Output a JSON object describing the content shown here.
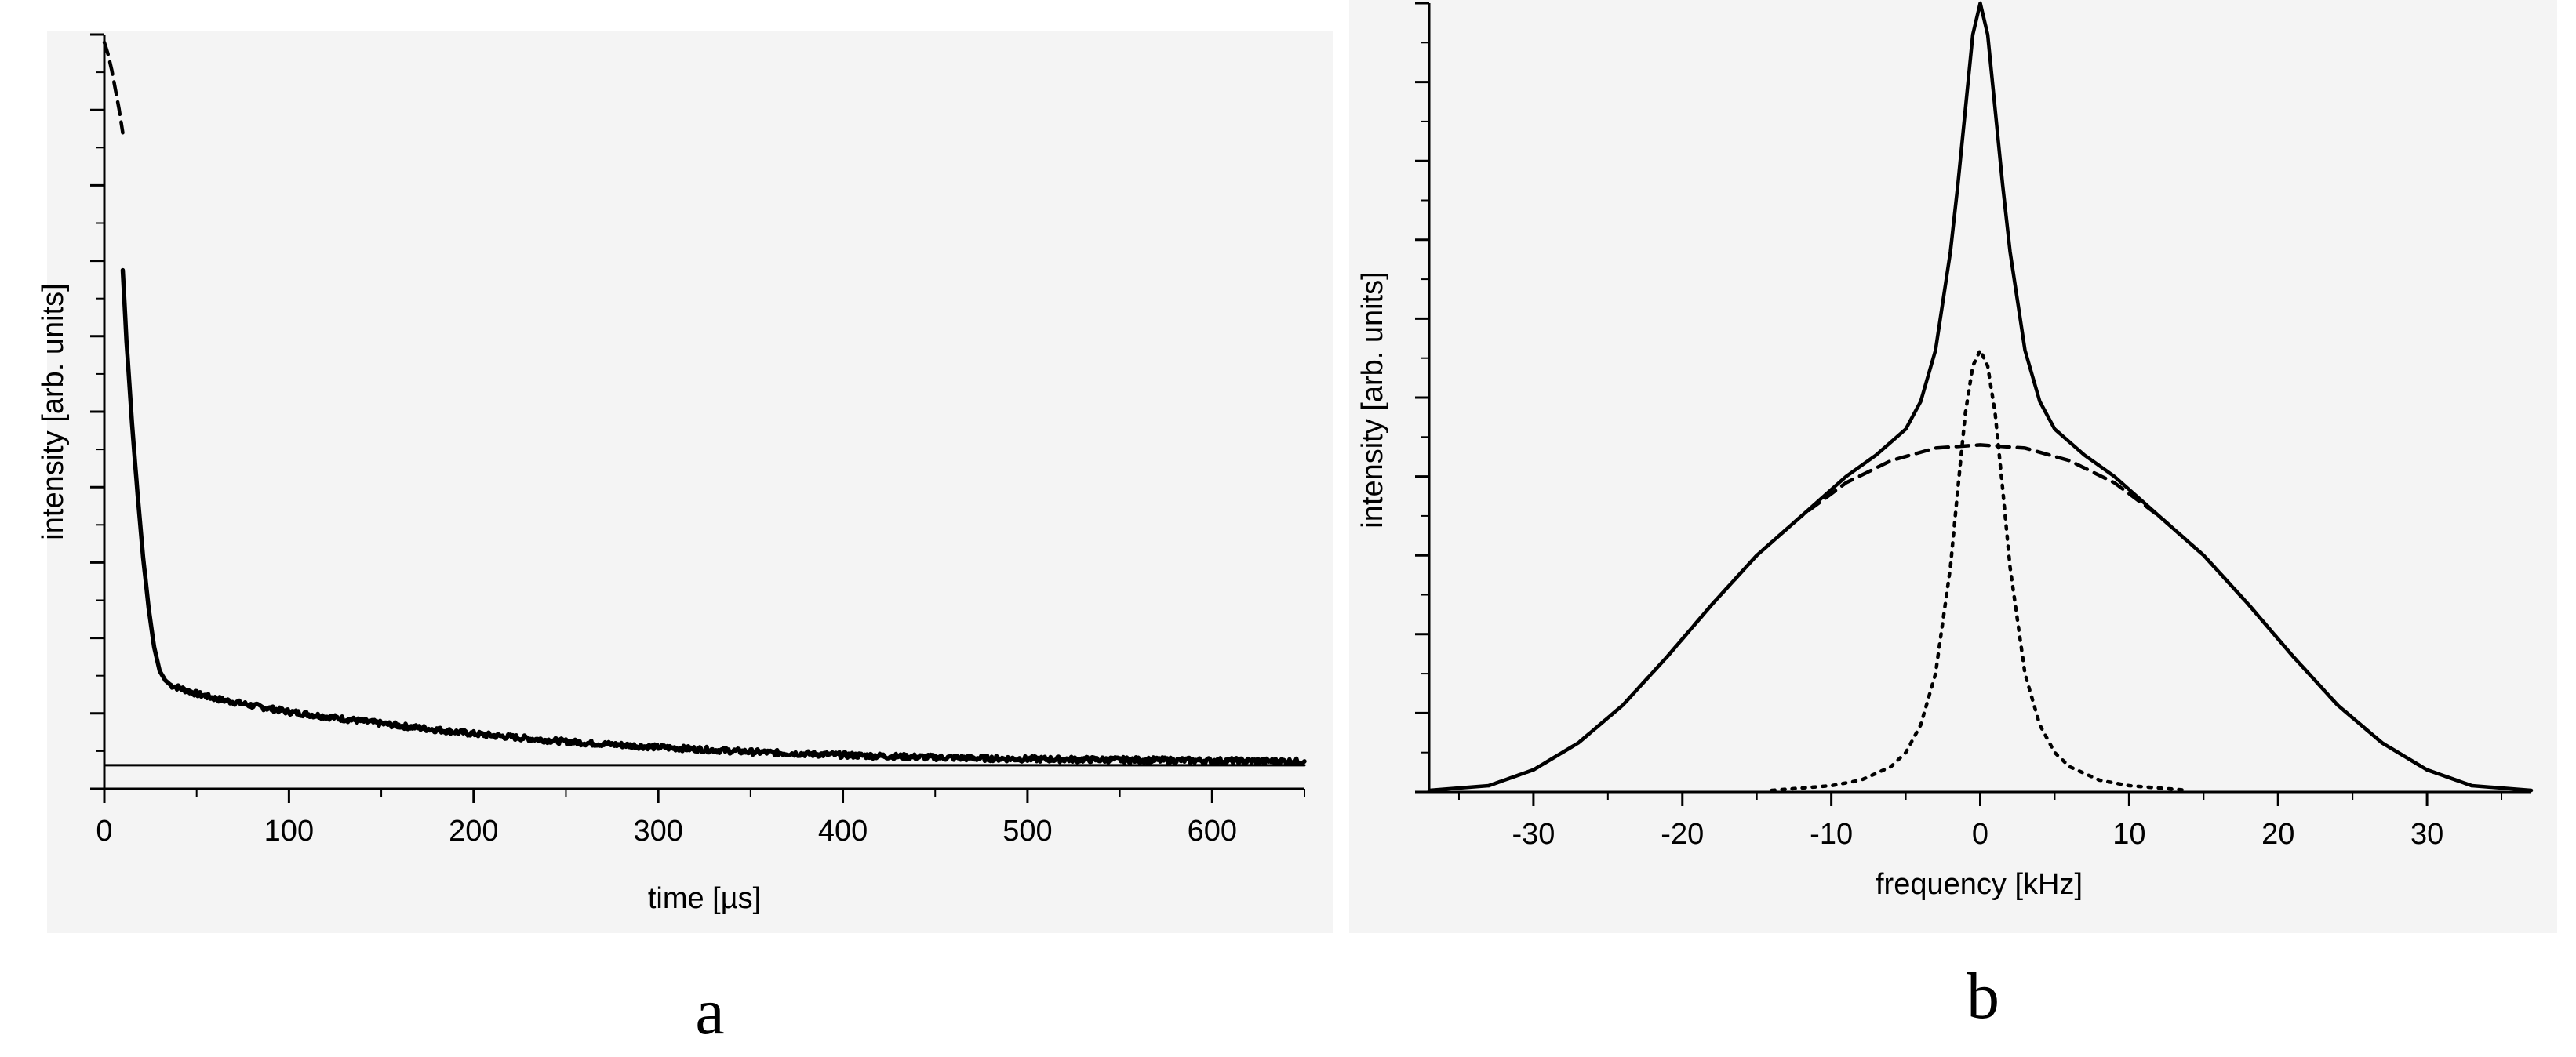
{
  "chart_data": [
    {
      "panel_label": "a",
      "type": "line",
      "xlabel": "time [µs]",
      "ylabel": "intensity [arb. units]",
      "xlim": [
        0,
        650
      ],
      "x_ticks": [
        0,
        100,
        200,
        300,
        400,
        500,
        600
      ],
      "y_tick_labels_shown": false,
      "ylim": [
        -0.3,
        9.3
      ],
      "grid": false,
      "series": [
        {
          "style": "dashed",
          "x": [
            0,
            2,
            4,
            6,
            8,
            10
          ],
          "y": [
            9.2,
            9.05,
            8.85,
            8.6,
            8.35,
            8.05
          ]
        },
        {
          "style": "solid-noisy",
          "x": [
            10,
            12,
            15,
            18,
            21,
            24,
            27,
            30,
            33,
            36,
            40,
            45,
            50,
            60,
            80,
            100,
            150,
            200,
            250,
            300,
            350,
            400,
            450,
            500,
            550,
            600,
            650
          ],
          "y": [
            6.3,
            5.4,
            4.35,
            3.45,
            2.65,
            2.0,
            1.5,
            1.2,
            1.08,
            1.02,
            0.99,
            0.95,
            0.91,
            0.85,
            0.76,
            0.68,
            0.53,
            0.4,
            0.3,
            0.23,
            0.17,
            0.13,
            0.1,
            0.08,
            0.07,
            0.06,
            0.05
          ]
        },
        {
          "style": "baseline",
          "x": [
            0,
            650
          ],
          "y": [
            0,
            0
          ]
        }
      ]
    },
    {
      "panel_label": "b",
      "type": "line",
      "xlabel": "frequency [kHz]",
      "ylabel": "intensity [arb. units]",
      "xlim": [
        -37,
        37
      ],
      "x_ticks": [
        -30,
        -20,
        -10,
        0,
        10,
        20,
        30
      ],
      "y_tick_labels_shown": false,
      "ylim": [
        0,
        10
      ],
      "grid": false,
      "series": [
        {
          "style": "solid",
          "x": [
            -37,
            -33,
            -30,
            -27,
            -24,
            -21,
            -18,
            -15,
            -12,
            -9,
            -7,
            -5,
            -4,
            -3,
            -2,
            -1.5,
            -1,
            -0.5,
            0,
            0.5,
            1,
            1.5,
            2,
            3,
            4,
            5,
            7,
            9,
            12,
            15,
            18,
            21,
            24,
            27,
            30,
            33,
            37
          ],
          "y": [
            0.02,
            0.08,
            0.28,
            0.62,
            1.1,
            1.72,
            2.38,
            3.0,
            3.5,
            4.0,
            4.27,
            4.6,
            4.95,
            5.6,
            6.85,
            7.7,
            8.65,
            9.6,
            10.0,
            9.6,
            8.65,
            7.7,
            6.85,
            5.6,
            4.95,
            4.6,
            4.27,
            4.0,
            3.5,
            3.0,
            2.38,
            1.72,
            1.1,
            0.62,
            0.28,
            0.08,
            0.02
          ]
        },
        {
          "style": "dashed",
          "x": [
            -33,
            -30,
            -27,
            -24,
            -21,
            -18,
            -15,
            -12,
            -9,
            -6,
            -3,
            0,
            3,
            6,
            9,
            12,
            15,
            18,
            21,
            24,
            27,
            30,
            33
          ],
          "y": [
            0.08,
            0.28,
            0.62,
            1.1,
            1.72,
            2.38,
            3.0,
            3.5,
            3.92,
            4.2,
            4.36,
            4.4,
            4.36,
            4.2,
            3.92,
            3.5,
            3.0,
            2.38,
            1.72,
            1.1,
            0.62,
            0.28,
            0.08
          ]
        },
        {
          "style": "dotted",
          "x": [
            -14,
            -10,
            -8,
            -6,
            -5,
            -4,
            -3,
            -2,
            -1.5,
            -1,
            -0.5,
            0,
            0.5,
            1,
            1.5,
            2,
            3,
            4,
            5,
            6,
            8,
            10,
            14
          ],
          "y": [
            0.02,
            0.08,
            0.15,
            0.32,
            0.5,
            0.85,
            1.5,
            2.85,
            3.85,
            4.8,
            5.4,
            5.6,
            5.4,
            4.8,
            3.85,
            2.85,
            1.5,
            0.85,
            0.5,
            0.32,
            0.15,
            0.08,
            0.02
          ]
        }
      ]
    }
  ]
}
